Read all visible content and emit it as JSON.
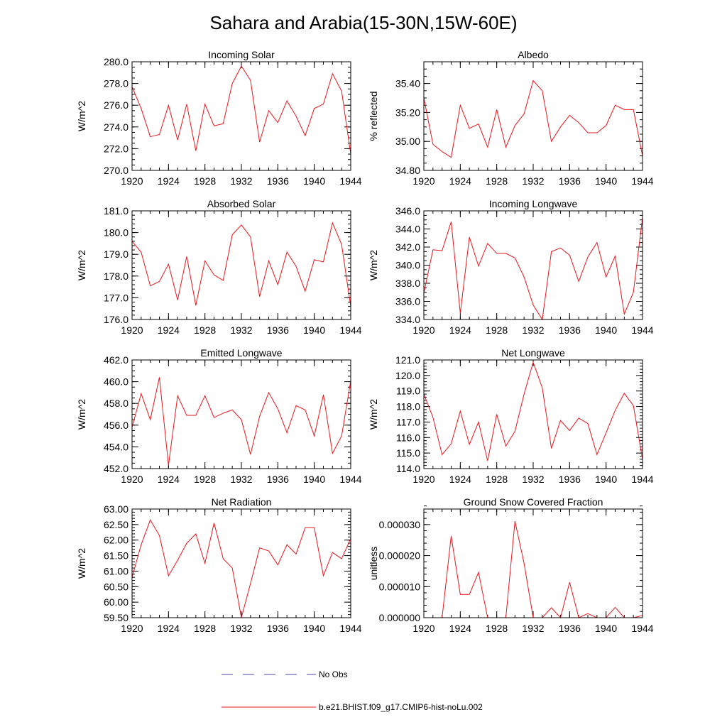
{
  "page": {
    "title": "Sahara and Arabia(15-30N,15W-60E)"
  },
  "legend": {
    "items": [
      {
        "label": "No Obs",
        "style": "dashed",
        "color": "#4a4aa8"
      },
      {
        "label": "b.e21.BHIST.f09_g17.CMIP6-hist-noLu.002",
        "style": "solid",
        "color": "#e8171c"
      }
    ]
  },
  "chart_data": [
    {
      "type": "line",
      "title": "Incoming Solar",
      "ylabel": "W/m^2",
      "xlim": [
        1920,
        1944
      ],
      "ylim": [
        270,
        280
      ],
      "xticks": [
        1920,
        1924,
        1928,
        1932,
        1936,
        1940,
        1944
      ],
      "xtick_labels": [
        "1920",
        "1924",
        "1928",
        "1932",
        "1936",
        "1940",
        "1944"
      ],
      "yticks": [
        270,
        272,
        274,
        276,
        278,
        280
      ],
      "ytick_labels": [
        "270.0",
        "272.0",
        "274.0",
        "276.0",
        "278.0",
        "280.0"
      ],
      "yminor": 0.5,
      "x": [
        1920,
        1921,
        1922,
        1923,
        1924,
        1925,
        1926,
        1927,
        1928,
        1929,
        1930,
        1931,
        1932,
        1933,
        1934,
        1935,
        1936,
        1937,
        1938,
        1939,
        1940,
        1941,
        1942,
        1943,
        1944
      ],
      "series": [
        {
          "name": "b.e21.BHIST.f09_g17.CMIP6-hist-noLu.002",
          "color": "#e8171c",
          "values": [
            277.7,
            275.7,
            273.1,
            273.3,
            276.0,
            272.8,
            276.1,
            271.8,
            276.1,
            274.1,
            274.3,
            278.0,
            279.6,
            278.3,
            272.6,
            275.5,
            274.4,
            276.4,
            275.0,
            273.2,
            275.7,
            276.1,
            278.9,
            277.3,
            271.5
          ]
        }
      ]
    },
    {
      "type": "line",
      "title": "Albedo",
      "ylabel": "% reflected",
      "xlim": [
        1920,
        1944
      ],
      "ylim": [
        34.8,
        35.55
      ],
      "xticks": [
        1920,
        1924,
        1928,
        1932,
        1936,
        1940,
        1944
      ],
      "xtick_labels": [
        "1920",
        "1924",
        "1928",
        "1932",
        "1936",
        "1940",
        "1944"
      ],
      "yticks": [
        34.8,
        35.0,
        35.2,
        35.4
      ],
      "ytick_labels": [
        "34.80",
        "35.00",
        "35.20",
        "35.40"
      ],
      "yminor": 0.05,
      "x": [
        1920,
        1921,
        1922,
        1923,
        1924,
        1925,
        1926,
        1927,
        1928,
        1929,
        1930,
        1931,
        1932,
        1933,
        1934,
        1935,
        1936,
        1937,
        1938,
        1939,
        1940,
        1941,
        1942,
        1943,
        1944
      ],
      "series": [
        {
          "name": "b.e21.BHIST.f09_g17.CMIP6-hist-noLu.002",
          "color": "#e8171c",
          "values": [
            35.3,
            34.98,
            34.93,
            34.89,
            35.25,
            35.09,
            35.12,
            34.96,
            35.22,
            34.96,
            35.11,
            35.19,
            35.42,
            35.35,
            35.0,
            35.1,
            35.18,
            35.13,
            35.06,
            35.06,
            35.11,
            35.25,
            35.22,
            35.22,
            34.9
          ]
        }
      ]
    },
    {
      "type": "line",
      "title": "Absorbed Solar",
      "ylabel": "W/m^2",
      "xlim": [
        1920,
        1944
      ],
      "ylim": [
        176,
        181
      ],
      "xticks": [
        1920,
        1924,
        1928,
        1932,
        1936,
        1940,
        1944
      ],
      "xtick_labels": [
        "1920",
        "1924",
        "1928",
        "1932",
        "1936",
        "1940",
        "1944"
      ],
      "yticks": [
        176,
        177,
        178,
        179,
        180,
        181
      ],
      "ytick_labels": [
        "176.0",
        "177.0",
        "178.0",
        "179.0",
        "180.0",
        "181.0"
      ],
      "yminor": 0.2,
      "x": [
        1920,
        1921,
        1922,
        1923,
        1924,
        1925,
        1926,
        1927,
        1928,
        1929,
        1930,
        1931,
        1932,
        1933,
        1934,
        1935,
        1936,
        1937,
        1938,
        1939,
        1940,
        1941,
        1942,
        1943,
        1944
      ],
      "series": [
        {
          "name": "b.e21.BHIST.f09_g17.CMIP6-hist-noLu.002",
          "color": "#e8171c",
          "values": [
            179.6,
            179.1,
            177.55,
            177.75,
            178.55,
            176.9,
            178.9,
            176.65,
            178.7,
            178.05,
            177.8,
            179.9,
            180.35,
            179.8,
            177.05,
            178.7,
            177.6,
            179.1,
            178.45,
            177.3,
            178.75,
            178.65,
            180.45,
            179.45,
            176.6
          ]
        }
      ]
    },
    {
      "type": "line",
      "title": "Incoming Longwave",
      "ylabel": "W/m^2",
      "xlim": [
        1920,
        1944
      ],
      "ylim": [
        334,
        346
      ],
      "xticks": [
        1920,
        1924,
        1928,
        1932,
        1936,
        1940,
        1944
      ],
      "xtick_labels": [
        "1920",
        "1924",
        "1928",
        "1932",
        "1936",
        "1940",
        "1944"
      ],
      "yticks": [
        334,
        336,
        338,
        340,
        342,
        344,
        346
      ],
      "ytick_labels": [
        "334.0",
        "336.0",
        "338.0",
        "340.0",
        "342.0",
        "344.0",
        "346.0"
      ],
      "yminor": 0.5,
      "x": [
        1920,
        1921,
        1922,
        1923,
        1924,
        1925,
        1926,
        1927,
        1928,
        1929,
        1930,
        1931,
        1932,
        1933,
        1934,
        1935,
        1936,
        1937,
        1938,
        1939,
        1940,
        1941,
        1942,
        1943,
        1944
      ],
      "series": [
        {
          "name": "b.e21.BHIST.f09_g17.CMIP6-hist-noLu.002",
          "color": "#e8171c",
          "values": [
            336.9,
            341.7,
            341.6,
            344.8,
            334.7,
            343.1,
            339.9,
            342.4,
            341.3,
            341.3,
            340.8,
            338.7,
            335.6,
            334.0,
            341.5,
            341.9,
            341.1,
            338.2,
            340.9,
            342.5,
            338.7,
            341.0,
            334.6,
            337.0,
            345.3
          ]
        }
      ]
    },
    {
      "type": "line",
      "title": "Emitted Longwave",
      "ylabel": "W/m^2",
      "xlim": [
        1920,
        1944
      ],
      "ylim": [
        452,
        462
      ],
      "xticks": [
        1920,
        1924,
        1928,
        1932,
        1936,
        1940,
        1944
      ],
      "xtick_labels": [
        "1920",
        "1924",
        "1928",
        "1932",
        "1936",
        "1940",
        "1944"
      ],
      "yticks": [
        452,
        454,
        456,
        458,
        460,
        462
      ],
      "ytick_labels": [
        "452.0",
        "454.0",
        "456.0",
        "458.0",
        "460.0",
        "462.0"
      ],
      "yminor": 0.5,
      "x": [
        1920,
        1921,
        1922,
        1923,
        1924,
        1925,
        1926,
        1927,
        1928,
        1929,
        1930,
        1931,
        1932,
        1933,
        1934,
        1935,
        1936,
        1937,
        1938,
        1939,
        1940,
        1941,
        1942,
        1943,
        1944
      ],
      "series": [
        {
          "name": "b.e21.BHIST.f09_g17.CMIP6-hist-noLu.002",
          "color": "#e8171c",
          "values": [
            455.8,
            458.9,
            456.5,
            460.4,
            452.3,
            458.7,
            456.9,
            456.9,
            458.7,
            456.7,
            457.1,
            457.4,
            456.5,
            453.3,
            456.8,
            459.0,
            457.5,
            455.3,
            457.8,
            457.4,
            455.0,
            458.8,
            453.4,
            455.0,
            460.1
          ]
        }
      ]
    },
    {
      "type": "line",
      "title": "Net Longwave",
      "ylabel": "W/m^2",
      "xlim": [
        1920,
        1944
      ],
      "ylim": [
        114,
        121
      ],
      "xticks": [
        1920,
        1924,
        1928,
        1932,
        1936,
        1940,
        1944
      ],
      "xtick_labels": [
        "1920",
        "1924",
        "1928",
        "1932",
        "1936",
        "1940",
        "1944"
      ],
      "yticks": [
        114,
        115,
        116,
        117,
        118,
        119,
        120,
        121
      ],
      "ytick_labels": [
        "114.0",
        "115.0",
        "116.0",
        "117.0",
        "118.0",
        "119.0",
        "120.0",
        "121.0"
      ],
      "yminor": 0.2,
      "x": [
        1920,
        1921,
        1922,
        1923,
        1924,
        1925,
        1926,
        1927,
        1928,
        1929,
        1930,
        1931,
        1932,
        1933,
        1934,
        1935,
        1936,
        1937,
        1938,
        1939,
        1940,
        1941,
        1942,
        1943,
        1944
      ],
      "series": [
        {
          "name": "b.e21.BHIST.f09_g17.CMIP6-hist-noLu.002",
          "color": "#e8171c",
          "values": [
            118.8,
            117.3,
            114.9,
            115.6,
            117.7,
            115.55,
            117.0,
            114.5,
            117.5,
            115.45,
            116.4,
            118.8,
            120.85,
            119.2,
            115.3,
            117.1,
            116.45,
            117.25,
            116.9,
            114.9,
            116.3,
            117.75,
            118.85,
            118.05,
            114.6
          ]
        }
      ]
    },
    {
      "type": "line",
      "title": "Net Radiation",
      "ylabel": "W/m^2",
      "xlim": [
        1920,
        1944
      ],
      "ylim": [
        59.5,
        63.0
      ],
      "xticks": [
        1920,
        1924,
        1928,
        1932,
        1936,
        1940,
        1944
      ],
      "xtick_labels": [
        "1920",
        "1924",
        "1928",
        "1932",
        "1936",
        "1940",
        "1944"
      ],
      "yticks": [
        59.5,
        60.0,
        60.5,
        61.0,
        61.5,
        62.0,
        62.5,
        63.0
      ],
      "ytick_labels": [
        "59.50",
        "60.00",
        "60.50",
        "61.00",
        "61.50",
        "62.00",
        "62.50",
        "63.00"
      ],
      "yminor": 0.1,
      "x": [
        1920,
        1921,
        1922,
        1923,
        1924,
        1925,
        1926,
        1927,
        1928,
        1929,
        1930,
        1931,
        1932,
        1933,
        1934,
        1935,
        1936,
        1937,
        1938,
        1939,
        1940,
        1941,
        1942,
        1943,
        1944
      ],
      "series": [
        {
          "name": "b.e21.BHIST.f09_g17.CMIP6-hist-noLu.002",
          "color": "#e8171c",
          "values": [
            60.8,
            61.85,
            62.65,
            62.15,
            60.85,
            61.35,
            61.9,
            62.2,
            61.25,
            62.55,
            61.4,
            61.1,
            59.5,
            60.6,
            61.75,
            61.65,
            61.2,
            61.85,
            61.55,
            62.4,
            62.4,
            60.85,
            61.6,
            61.4,
            62.05
          ]
        }
      ]
    },
    {
      "type": "line",
      "title": "Ground Snow Covered Fraction",
      "ylabel": "unitless",
      "xlim": [
        1920,
        1944
      ],
      "ylim": [
        0,
        3.5e-05
      ],
      "xticks": [
        1920,
        1924,
        1928,
        1932,
        1936,
        1940,
        1944
      ],
      "xtick_labels": [
        "1920",
        "1924",
        "1928",
        "1932",
        "1936",
        "1940",
        "1944"
      ],
      "yticks": [
        0,
        1e-05,
        2e-05,
        3e-05
      ],
      "ytick_labels": [
        "0.000000",
        "0.000010",
        "0.000020",
        "0.000030"
      ],
      "yminor": 2e-06,
      "x": [
        1920,
        1921,
        1922,
        1923,
        1924,
        1925,
        1926,
        1927,
        1928,
        1929,
        1930,
        1931,
        1932,
        1933,
        1934,
        1935,
        1936,
        1937,
        1938,
        1939,
        1940,
        1941,
        1942,
        1943,
        1944
      ],
      "series": [
        {
          "name": "b.e21.BHIST.f09_g17.CMIP6-hist-noLu.002",
          "color": "#e8171c",
          "values": [
            0,
            0,
            0,
            2.63e-05,
            7.5e-06,
            7.5e-06,
            1.46e-05,
            0,
            0,
            0,
            3.11e-05,
            1.75e-05,
            0,
            0,
            3.2e-06,
            0,
            1.14e-05,
            0,
            1.3e-06,
            0,
            0,
            3.3e-06,
            0,
            0,
            7e-07
          ]
        }
      ]
    }
  ]
}
